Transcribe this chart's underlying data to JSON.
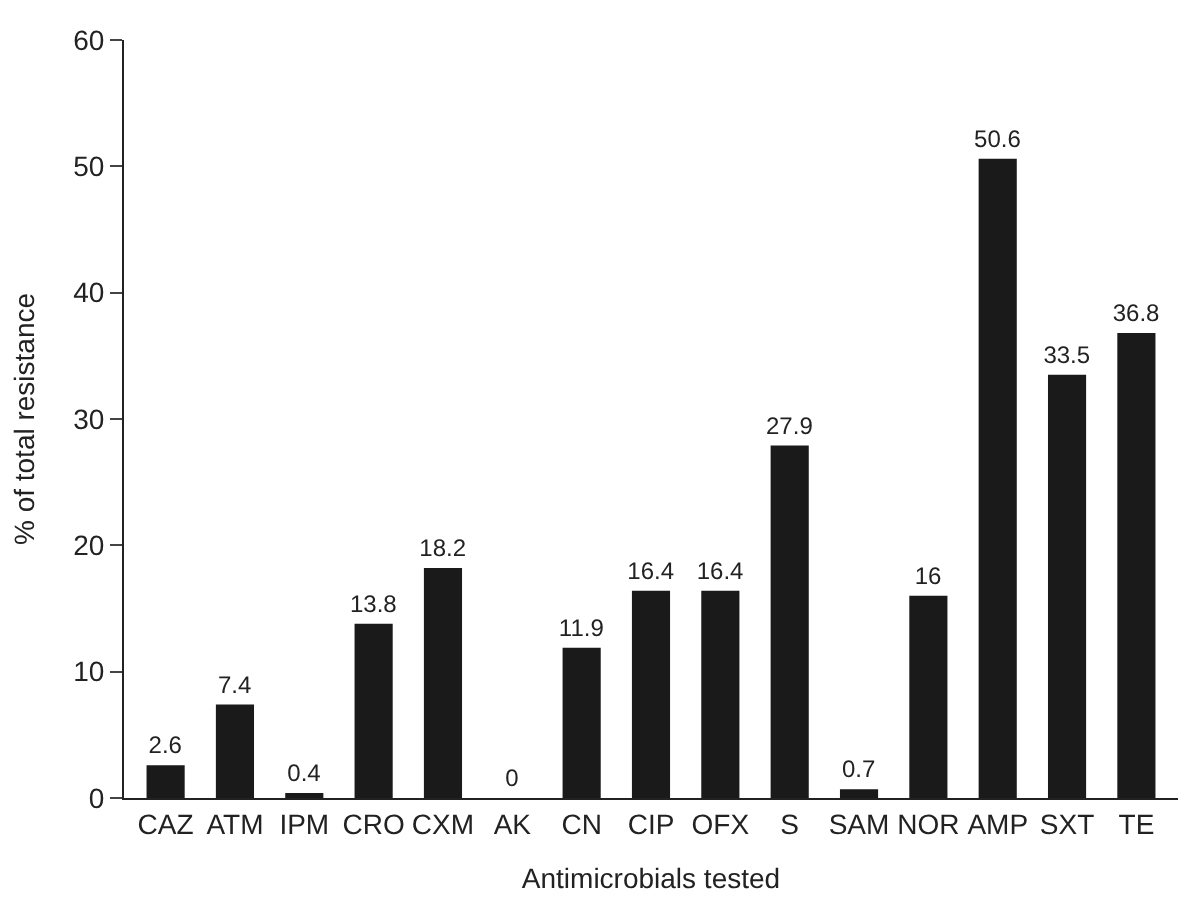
{
  "chart_data": {
    "type": "bar",
    "xlabel": "Antimicrobials tested",
    "ylabel": "% of total resistance",
    "categories": [
      "CAZ",
      "ATM",
      "IPM",
      "CRO",
      "CXM",
      "AK",
      "CN",
      "CIP",
      "OFX",
      "S",
      "SAM",
      "NOR",
      "AMP",
      "SXT",
      "TE"
    ],
    "values": [
      2.6,
      7.4,
      0.4,
      13.8,
      18.2,
      0,
      11.9,
      16.4,
      16.4,
      27.9,
      0.7,
      16,
      50.6,
      33.5,
      36.8
    ],
    "color": "#1a1a1a",
    "ylim": [
      0,
      60
    ],
    "yticks": [
      0,
      10,
      20,
      30,
      40,
      50,
      60
    ],
    "data_labels": true
  }
}
